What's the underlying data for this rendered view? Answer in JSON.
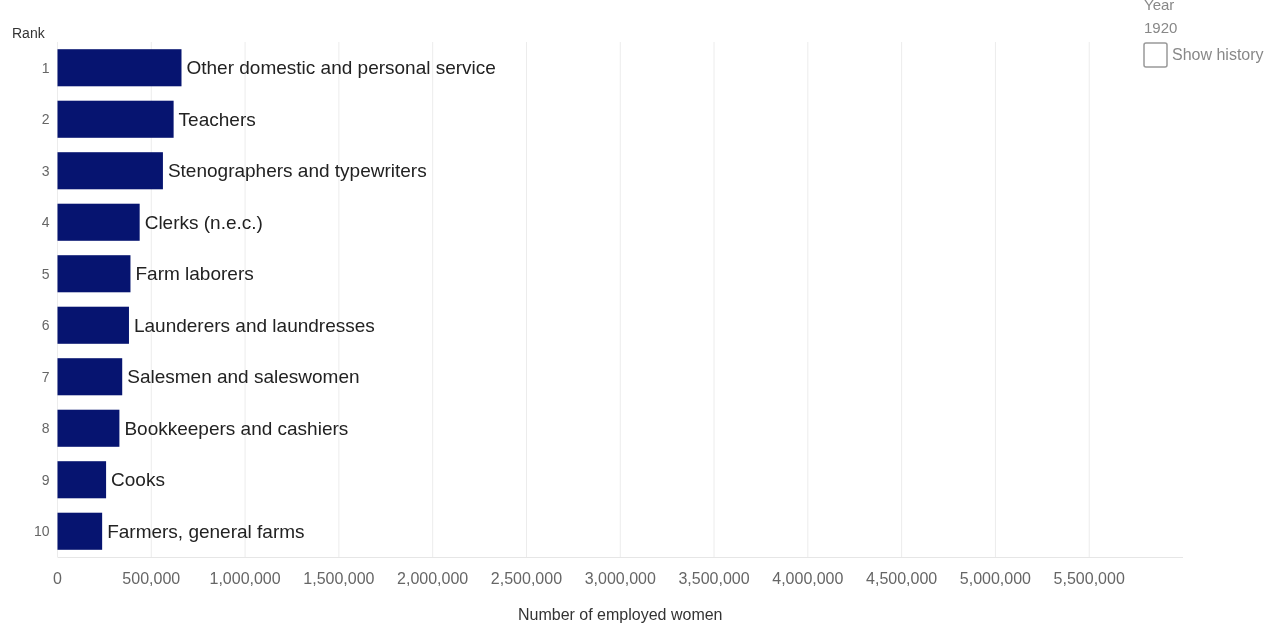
{
  "chart_data": {
    "type": "bar",
    "orientation": "horizontal",
    "ylabel": "Rank",
    "xlabel": "Number of employed women",
    "categories": [
      "1",
      "2",
      "3",
      "4",
      "5",
      "6",
      "7",
      "8",
      "9",
      "10"
    ],
    "values": [
      661000,
      619000,
      562000,
      438000,
      389000,
      381000,
      345000,
      330000,
      259000,
      238000
    ],
    "value_labels": [
      "Other domestic and personal service",
      "Teachers",
      "Stenographers and typewriters",
      "Clerks (n.e.c.)",
      "Farm laborers",
      "Launderers and laundresses",
      "Salesmen and saleswomen",
      "Bookkeepers and cashiers",
      "Cooks",
      "Farmers, general farms"
    ],
    "color": "#061470",
    "xlim": [
      0,
      6000000
    ],
    "xticks": [
      {
        "value": 0,
        "label": "0"
      },
      {
        "value": 500000,
        "label": "500,000"
      },
      {
        "value": 1000000,
        "label": "1,000,000"
      },
      {
        "value": 1500000,
        "label": "1,500,000"
      },
      {
        "value": 2000000,
        "label": "2,000,000"
      },
      {
        "value": 2500000,
        "label": "2,500,000"
      },
      {
        "value": 3000000,
        "label": "3,000,000"
      },
      {
        "value": 3500000,
        "label": "3,500,000"
      },
      {
        "value": 4000000,
        "label": "4,000,000"
      },
      {
        "value": 4500000,
        "label": "4,500,000"
      },
      {
        "value": 5000000,
        "label": "5,000,000"
      },
      {
        "value": 5500000,
        "label": "5,500,000"
      }
    ],
    "grid": "x",
    "annotations": [
      "Year",
      "1920",
      "Show history"
    ]
  }
}
